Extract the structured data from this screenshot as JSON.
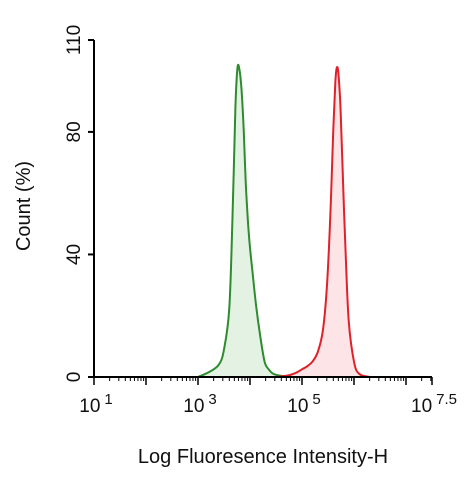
{
  "chart_data": {
    "type": "area",
    "xlabel": "Log Fluoresence Intensity-H",
    "ylabel": "Count  (%)",
    "x_scale": "log",
    "xlim": [
      1,
      7.5
    ],
    "ylim": [
      0,
      110
    ],
    "x_ticks": [
      {
        "value": 1,
        "base": "10",
        "exp": "1"
      },
      {
        "value": 3,
        "base": "10",
        "exp": "3"
      },
      {
        "value": 5,
        "base": "10",
        "exp": "5"
      },
      {
        "value": 7.5,
        "base": "10",
        "exp": "7.5"
      }
    ],
    "y_ticks": [
      0,
      40,
      80,
      110
    ],
    "grid": false,
    "series": [
      {
        "color": "#2e8b2e",
        "fill": "#e4f2e4",
        "x": [
          3.0,
          3.2,
          3.4,
          3.5,
          3.6,
          3.66,
          3.72,
          3.76,
          3.8,
          3.84,
          3.88,
          3.92,
          3.98,
          4.05,
          4.12,
          4.2,
          4.28,
          4.36,
          4.45,
          4.6,
          4.8,
          5.2
        ],
        "values": [
          0,
          1.5,
          4,
          9,
          22,
          50,
          88,
          101,
          100,
          93,
          80,
          63,
          46,
          34,
          23,
          13,
          5,
          2.5,
          1,
          0.4,
          0.1,
          0
        ]
      },
      {
        "color": "#e0202a",
        "fill": "#fde4e6",
        "x": [
          4.5,
          4.7,
          4.8,
          4.9,
          5.0,
          5.1,
          5.2,
          5.3,
          5.4,
          5.48,
          5.55,
          5.6,
          5.64,
          5.67,
          5.7,
          5.74,
          5.78,
          5.84,
          5.9,
          6.0,
          6.1,
          6.3
        ],
        "values": [
          0,
          0.4,
          0.8,
          1.5,
          2.5,
          3.5,
          5,
          8,
          15,
          30,
          55,
          80,
          96,
          101,
          99,
          88,
          68,
          40,
          18,
          5,
          1,
          0
        ]
      }
    ]
  }
}
